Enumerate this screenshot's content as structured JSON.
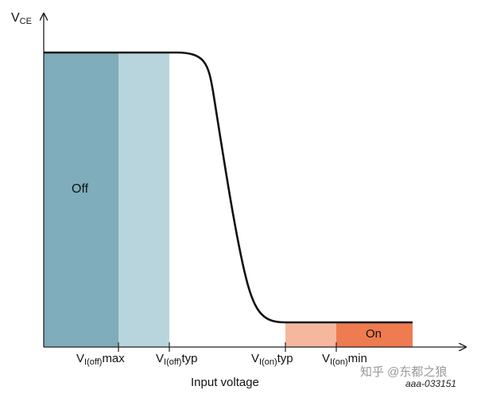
{
  "y_axis_label": {
    "main": "V",
    "sub": "CE"
  },
  "x_axis_label": "Input voltage",
  "regions": {
    "off": {
      "label": "Off",
      "color": "#7fadbb"
    },
    "off_margin": {
      "color": "#b8d4dc"
    },
    "on_margin": {
      "color": "#f6b79f"
    },
    "on": {
      "label": "On",
      "color": "#ef7b50"
    }
  },
  "ticks": [
    {
      "main": "V",
      "sub": "I(off)",
      "suffix": "max"
    },
    {
      "main": "V",
      "sub": "I(off)",
      "suffix": "typ"
    },
    {
      "main": "V",
      "sub": "I(on)",
      "suffix": "typ"
    },
    {
      "main": "V",
      "sub": "I(on)",
      "suffix": "min"
    }
  ],
  "reference_code": "aaa-033151",
  "watermark": "知乎 @东都之狼"
}
